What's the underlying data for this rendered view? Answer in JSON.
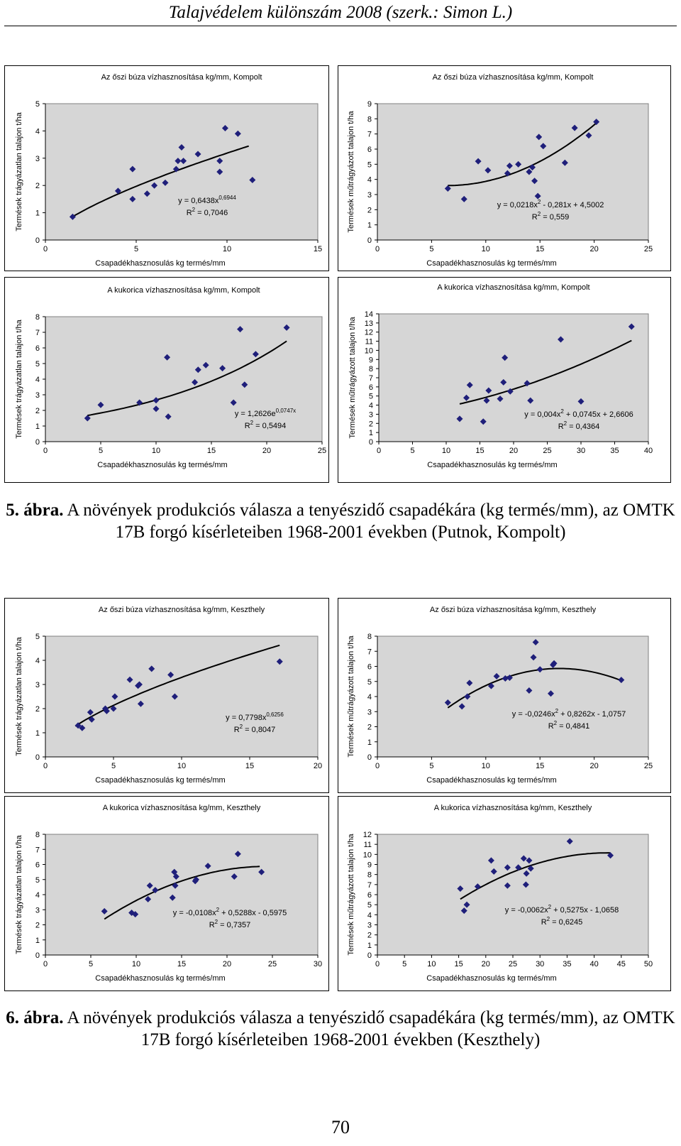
{
  "header": "Talajvédelem különszám 2008 (szerk.: Simon L.)",
  "figure5_caption": {
    "label": "5. ábra.",
    "text": " A növények produkciós válasza  a tenyészidő csapadékára (kg termés/mm), az OMTK 17B forgó kísérleteiben 1968-2001 években (Putnok, Kompolt)"
  },
  "figure6_caption": {
    "label": "6. ábra.",
    "text": " A növények produkciós válasza a tenyészidő csapadékára (kg termés/mm), az OMTK 17B forgó kísérleteiben 1968-2001 években (Keszthely)"
  },
  "page_number": "70",
  "colors": {
    "marker": "#1f1f7a",
    "plot_bg": "#d6d6d6",
    "line": "#000000"
  },
  "chart_data": [
    {
      "type": "scatter",
      "title": "Az őszi búza vízhasznosítása kg/mm, Kompolt",
      "xlabel": "Csapadékhasznosulás kg termés/mm",
      "ylabel": "Termések trágyázatlan talajon t/ha",
      "xlim": [
        0,
        15
      ],
      "ylim": [
        0,
        5
      ],
      "xticks": [
        0,
        5,
        10,
        15
      ],
      "yticks": [
        0,
        1,
        2,
        3,
        4,
        5
      ],
      "points": [
        [
          1.5,
          0.85
        ],
        [
          4,
          1.8
        ],
        [
          4.8,
          1.5
        ],
        [
          4.8,
          2.6
        ],
        [
          5.6,
          1.7
        ],
        [
          6,
          2
        ],
        [
          6.6,
          2.1
        ],
        [
          7.2,
          2.6
        ],
        [
          7.3,
          2.9
        ],
        [
          7.5,
          3.4
        ],
        [
          7.6,
          2.9
        ],
        [
          8.4,
          3.15
        ],
        [
          9.6,
          2.5
        ],
        [
          9.6,
          2.9
        ],
        [
          9.9,
          4.1
        ],
        [
          10.6,
          3.9
        ],
        [
          11.4,
          2.2
        ]
      ],
      "trend": {
        "kind": "power",
        "a": 0.6438,
        "b": 0.6944,
        "from": 1.5,
        "to": 11.2
      },
      "equation": "y = 0,6438x",
      "equation_sup": "0,6944",
      "r2": " = 0,7046"
    },
    {
      "type": "scatter",
      "title": "Az őszi búza vízhasznosítása kg/mm, Kompolt",
      "xlabel": "Csapadékhasznosulás kg termés/mm",
      "ylabel": "Termések műtrágyázott talajon t/ha",
      "xlim": [
        0,
        25
      ],
      "ylim": [
        0,
        9
      ],
      "xticks": [
        0,
        5,
        10,
        15,
        20,
        25
      ],
      "yticks": [
        0,
        1,
        2,
        3,
        4,
        5,
        6,
        7,
        8,
        9
      ],
      "points": [
        [
          6.5,
          3.4
        ],
        [
          8,
          2.7
        ],
        [
          9.3,
          5.2
        ],
        [
          10.2,
          4.6
        ],
        [
          12,
          4.4
        ],
        [
          12.2,
          4.9
        ],
        [
          13,
          5
        ],
        [
          14,
          4.5
        ],
        [
          14.5,
          3.9
        ],
        [
          14.8,
          2.9
        ],
        [
          14.9,
          6.8
        ],
        [
          15.3,
          6.2
        ],
        [
          17.3,
          5.1
        ],
        [
          18.2,
          7.4
        ],
        [
          19.5,
          6.9
        ],
        [
          20.2,
          7.8
        ],
        [
          14.3,
          4.8
        ]
      ],
      "trend": {
        "kind": "poly2",
        "a": 0.0218,
        "b": -0.281,
        "c": 4.5002,
        "from": 6.5,
        "to": 20.2
      },
      "equation": "y = 0,0218x",
      "equation_sup": "2",
      "equation_rest": " - 0,281x + 4,5002",
      "r2": " = 0,559"
    },
    {
      "type": "scatter",
      "title": "A kukorica vízhasznosítása kg/mm, Kompolt",
      "xlabel": "Csapadékhasznosulás kg termés/mm",
      "ylabel": "Termések  trágyázatlan talajon t/ha",
      "xlim": [
        0,
        25
      ],
      "ylim": [
        0,
        8
      ],
      "xticks": [
        0,
        5,
        10,
        15,
        20,
        25
      ],
      "yticks": [
        0,
        1,
        2,
        3,
        4,
        5,
        6,
        7,
        8
      ],
      "points": [
        [
          3.8,
          1.5
        ],
        [
          5,
          2.35
        ],
        [
          8.5,
          2.5
        ],
        [
          10,
          2.1
        ],
        [
          10,
          2.65
        ],
        [
          11,
          5.4
        ],
        [
          11.1,
          1.6
        ],
        [
          13.5,
          3.8
        ],
        [
          13.8,
          4.6
        ],
        [
          14.5,
          4.9
        ],
        [
          16,
          4.7
        ],
        [
          17,
          2.5
        ],
        [
          17.6,
          7.2
        ],
        [
          18,
          3.65
        ],
        [
          19,
          5.6
        ],
        [
          21.8,
          7.3
        ]
      ],
      "trend": {
        "kind": "exp",
        "a": 1.2626,
        "b": 0.0747,
        "from": 3.8,
        "to": 21.8
      },
      "equation": "y = 1,2626e",
      "equation_sup": "0,0747x",
      "r2": " = 0,5494"
    },
    {
      "type": "scatter",
      "title": "A kukorica vízhasznosítása kg/mm, Kompolt",
      "xlabel": "Csapadékhasznosulás kg termés/mm",
      "ylabel": "Termések  műtrágyázott talajon t/ha",
      "xlim": [
        0,
        40
      ],
      "ylim": [
        0,
        14
      ],
      "xticks": [
        0,
        5,
        10,
        15,
        20,
        25,
        30,
        35,
        40
      ],
      "yticks": [
        0,
        1,
        2,
        3,
        4,
        5,
        6,
        7,
        8,
        9,
        10,
        11,
        12,
        13,
        14
      ],
      "points": [
        [
          12,
          2.5
        ],
        [
          13,
          4.8
        ],
        [
          13.5,
          6.2
        ],
        [
          15.5,
          2.2
        ],
        [
          16,
          4.5
        ],
        [
          16.3,
          5.6
        ],
        [
          18,
          4.7
        ],
        [
          18.5,
          6.5
        ],
        [
          18.7,
          9.2
        ],
        [
          19.5,
          5.5
        ],
        [
          22,
          6.4
        ],
        [
          22.5,
          4.5
        ],
        [
          27,
          11.2
        ],
        [
          30,
          4.4
        ],
        [
          37.5,
          12.6
        ]
      ],
      "trend": {
        "kind": "poly2",
        "a": 0.004,
        "b": 0.0745,
        "c": 2.6606,
        "from": 12,
        "to": 37.5
      },
      "equation": "y = 0,004x",
      "equation_sup": "2",
      "equation_rest": " + 0,0745x + 2,6606",
      "r2": " = 0,4364"
    },
    {
      "type": "scatter",
      "title": "Az őszi búza vízhasznosítása kg/mm, Keszthely",
      "xlabel": "Csapadékhasznosulás kg termés/mm",
      "ylabel": "Termések trágyázatlan talajon t/ha",
      "xlim": [
        0,
        20
      ],
      "ylim": [
        0,
        5
      ],
      "xticks": [
        0,
        5,
        10,
        15,
        20
      ],
      "yticks": [
        0,
        1,
        2,
        3,
        4,
        5
      ],
      "points": [
        [
          2.4,
          1.3
        ],
        [
          2.7,
          1.2
        ],
        [
          3.3,
          1.85
        ],
        [
          3.4,
          1.55
        ],
        [
          4.4,
          2
        ],
        [
          4.5,
          1.9
        ],
        [
          5,
          2
        ],
        [
          5.1,
          2.5
        ],
        [
          6.2,
          3.2
        ],
        [
          6.8,
          2.95
        ],
        [
          6.9,
          3
        ],
        [
          7,
          2.2
        ],
        [
          7.8,
          3.65
        ],
        [
          9.2,
          3.4
        ],
        [
          9.5,
          2.5
        ],
        [
          17.2,
          3.95
        ]
      ],
      "trend": {
        "kind": "power",
        "a": 0.7798,
        "b": 0.6256,
        "from": 2.2,
        "to": 17.2
      },
      "equation": "y = 0,7798x",
      "equation_sup": "0,6256",
      "r2": " = 0,8047"
    },
    {
      "type": "scatter",
      "title": "Az őszi búza vízhasznosítása kg/mm, Keszthely",
      "xlabel": "Csapadékhasznosulás kg termés/mm",
      "ylabel": "Termések  műtrágyázott talajon t/ha",
      "xlim": [
        0,
        25
      ],
      "ylim": [
        0,
        8
      ],
      "xticks": [
        0,
        5,
        10,
        15,
        20,
        25
      ],
      "yticks": [
        0,
        1,
        2,
        3,
        4,
        5,
        6,
        7,
        8
      ],
      "points": [
        [
          6.5,
          3.6
        ],
        [
          7.8,
          3.35
        ],
        [
          8.3,
          4
        ],
        [
          8.5,
          4.9
        ],
        [
          10.5,
          4.7
        ],
        [
          11,
          5.35
        ],
        [
          11.8,
          5.2
        ],
        [
          12.2,
          5.25
        ],
        [
          14,
          4.4
        ],
        [
          14.4,
          6.6
        ],
        [
          14.6,
          7.6
        ],
        [
          15,
          5.8
        ],
        [
          16,
          4.2
        ],
        [
          16.2,
          6.1
        ],
        [
          16.3,
          6.2
        ],
        [
          22.5,
          5.1
        ]
      ],
      "trend": {
        "kind": "poly2",
        "a": -0.0246,
        "b": 0.8262,
        "c": -1.0757,
        "from": 6.5,
        "to": 22.5
      },
      "equation": "y = -0,0246x",
      "equation_sup": "2",
      "equation_rest": " + 0,8262x - 1,0757",
      "r2": " = 0,4841"
    },
    {
      "type": "scatter",
      "title": "A kukorica vízhasznosítása kg/mm, Keszthely",
      "xlabel": "Csapadékhasznosulás kg termés/mm",
      "ylabel": "Termések trágyázatlan talajon t/ha",
      "xlim": [
        0,
        30
      ],
      "ylim": [
        0,
        8
      ],
      "xticks": [
        0,
        5,
        10,
        15,
        20,
        25,
        30
      ],
      "yticks": [
        0,
        1,
        2,
        3,
        4,
        5,
        6,
        7,
        8
      ],
      "points": [
        [
          6.5,
          2.9
        ],
        [
          9.5,
          2.8
        ],
        [
          9.9,
          2.7
        ],
        [
          11.3,
          3.7
        ],
        [
          11.5,
          4.6
        ],
        [
          12.1,
          4.3
        ],
        [
          14,
          3.8
        ],
        [
          14.2,
          5.5
        ],
        [
          14.3,
          4.6
        ],
        [
          14.4,
          5.2
        ],
        [
          16.5,
          4.9
        ],
        [
          16.6,
          5
        ],
        [
          17.9,
          5.9
        ],
        [
          20.8,
          5.2
        ],
        [
          21.2,
          6.7
        ],
        [
          23.8,
          5.5
        ]
      ],
      "trend": {
        "kind": "poly2",
        "a": -0.0108,
        "b": 0.5288,
        "c": -0.5975,
        "from": 6.5,
        "to": 23.6
      },
      "equation": "y = -0,0108x",
      "equation_sup": "2",
      "equation_rest": " + 0,5288x - 0,5975",
      "r2": " = 0,7357"
    },
    {
      "type": "scatter",
      "title": "A kukorica vízhasznosítása kg/mm, Keszthely",
      "xlabel": "Csapadékhasznosulás kg termés/mm",
      "ylabel": "Termések  műtrágyázott talajon t/ha",
      "xlim": [
        0,
        50
      ],
      "ylim": [
        0,
        12
      ],
      "xticks": [
        0,
        5,
        10,
        15,
        20,
        25,
        30,
        35,
        40,
        45,
        50
      ],
      "yticks": [
        0,
        1,
        2,
        3,
        4,
        5,
        6,
        7,
        8,
        9,
        10,
        11,
        12
      ],
      "points": [
        [
          15.3,
          6.6
        ],
        [
          16,
          4.4
        ],
        [
          16.5,
          5
        ],
        [
          18.5,
          6.8
        ],
        [
          21,
          9.4
        ],
        [
          21.5,
          8.3
        ],
        [
          24,
          6.9
        ],
        [
          24,
          8.7
        ],
        [
          26,
          8.7
        ],
        [
          27,
          9.6
        ],
        [
          27.4,
          7
        ],
        [
          27.5,
          8.1
        ],
        [
          28,
          9.4
        ],
        [
          28.3,
          8.6
        ],
        [
          35.5,
          11.3
        ],
        [
          43,
          9.9
        ]
      ],
      "trend": {
        "kind": "poly2",
        "a": -0.0062,
        "b": 0.5275,
        "c": -1.0658,
        "from": 15.3,
        "to": 43
      },
      "equation": "y = -0,0062x",
      "equation_sup": "2",
      "equation_rest": " + 0,5275x - 1,0658",
      "r2": " = 0,6245"
    }
  ]
}
